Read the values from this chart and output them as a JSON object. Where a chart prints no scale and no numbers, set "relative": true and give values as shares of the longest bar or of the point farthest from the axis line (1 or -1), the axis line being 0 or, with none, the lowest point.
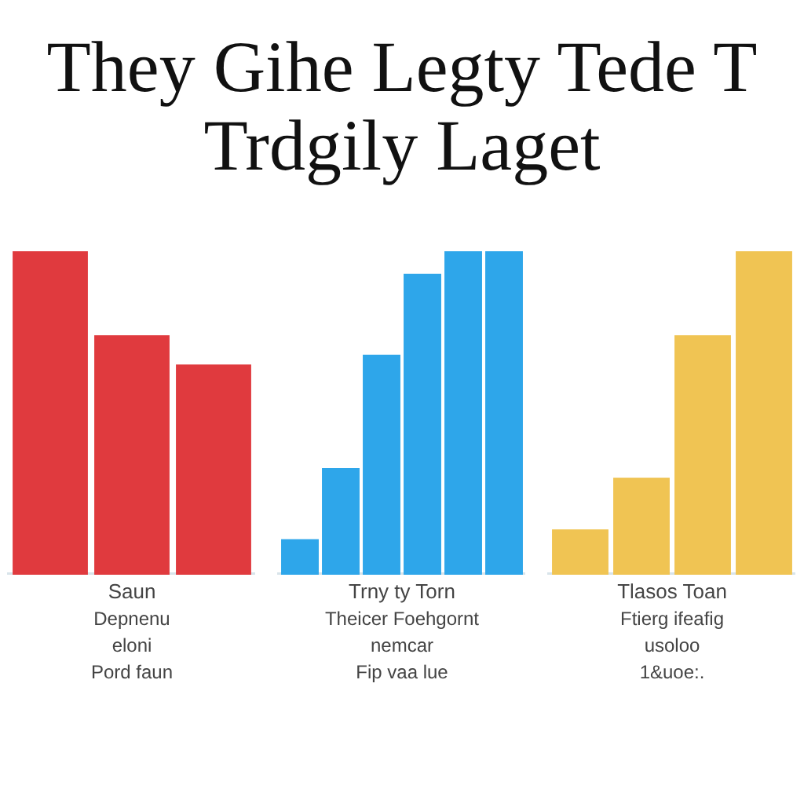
{
  "chart_data": [
    {
      "type": "bar",
      "title": "They Gihe Legty Tede T Trdgily Laget",
      "relative": true,
      "categories": [
        null,
        null,
        null
      ],
      "values": [
        1,
        0.74,
        0.65
      ],
      "color": "#e03a3e",
      "grid": false,
      "legend": false,
      "annotations": [
        "Saun",
        "Depnenu",
        "eloni",
        "Pord faun"
      ]
    },
    {
      "type": "bar",
      "relative": true,
      "categories": [
        null,
        null,
        null,
        null,
        null,
        null
      ],
      "values": [
        0.11,
        0.33,
        0.68,
        0.93,
        1,
        1
      ],
      "color": "#2ea6ea",
      "grid": false,
      "legend": false,
      "annotations": [
        "Trny ty   Torn",
        "Theicer Foehgornt",
        "nemcar",
        "Fip vaa lue"
      ]
    },
    {
      "type": "bar",
      "relative": true,
      "categories": [
        null,
        null,
        null,
        null
      ],
      "values": [
        0.14,
        0.3,
        0.74,
        1
      ],
      "color": "#f0c453",
      "grid": false,
      "legend": false,
      "annotations": [
        "Tlasos   Toan",
        "Ftierg ifeafig",
        "usoloo",
        "1&uoe:."
      ]
    }
  ]
}
